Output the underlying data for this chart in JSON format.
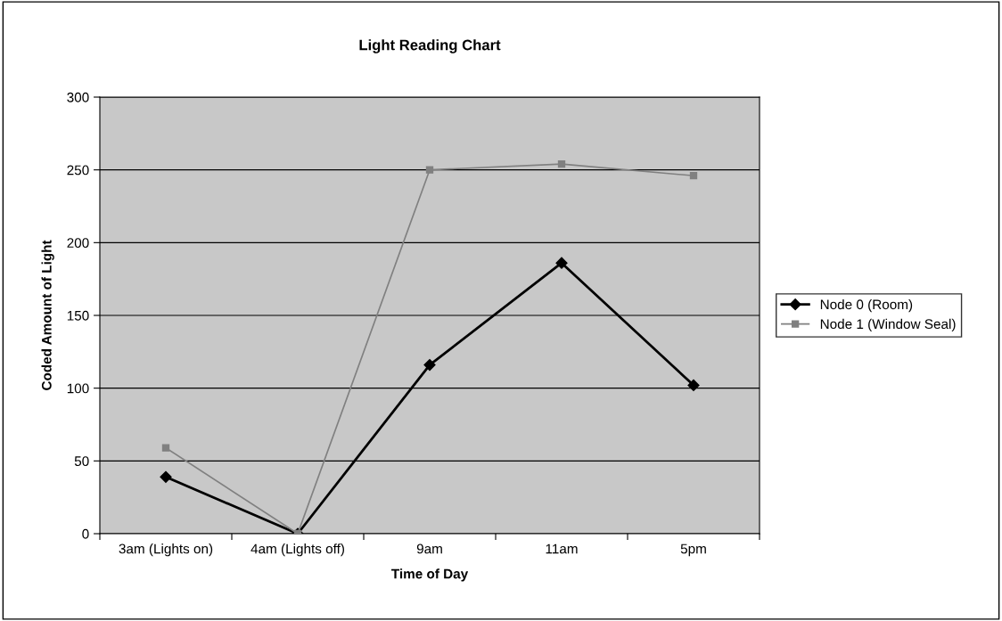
{
  "chart_data": {
    "type": "line",
    "title": "Light Reading Chart",
    "xlabel": "Time of Day",
    "ylabel": "Coded Amount of Light",
    "categories": [
      "3am (Lights on)",
      "4am (Lights off)",
      "9am",
      "11am",
      "5pm"
    ],
    "series": [
      {
        "name": "Node 0 (Room)",
        "color": "#000000",
        "marker": "diamond",
        "values": [
          39,
          0,
          116,
          186,
          102
        ]
      },
      {
        "name": "Node 1 (Window Seal)",
        "color": "#808080",
        "marker": "square",
        "values": [
          59,
          0,
          250,
          254,
          246
        ]
      }
    ],
    "ylim": [
      0,
      300
    ],
    "yticks": [
      0,
      50,
      100,
      150,
      200,
      250,
      300
    ],
    "grid": "y",
    "legend": "right",
    "line_style": "solid"
  }
}
